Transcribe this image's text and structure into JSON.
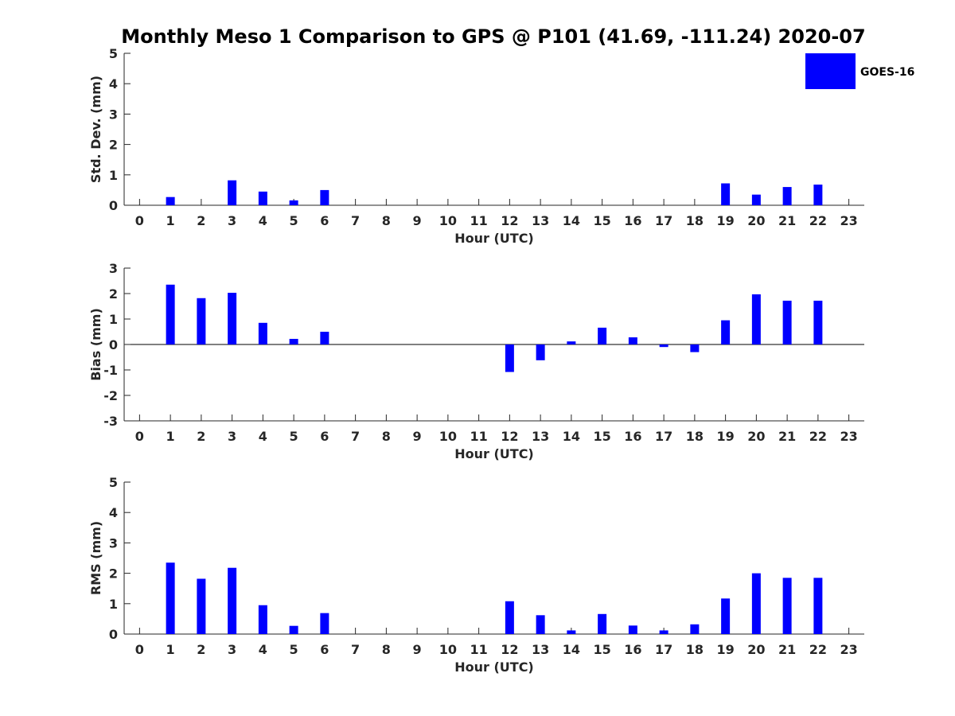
{
  "title": "Monthly Meso 1 Comparison to GPS @ P101 (41.69, -111.24) 2020-07",
  "legend": {
    "label": "GOES-16",
    "color": "#0000ff",
    "position": "top-right"
  },
  "colors": {
    "bar": "#0000ff",
    "axis": "#262626",
    "background": "#ffffff"
  },
  "chart_data": [
    {
      "type": "bar",
      "categories": [
        "0",
        "1",
        "2",
        "3",
        "4",
        "5",
        "6",
        "7",
        "8",
        "9",
        "10",
        "11",
        "12",
        "13",
        "14",
        "15",
        "16",
        "17",
        "18",
        "19",
        "20",
        "21",
        "22",
        "23"
      ],
      "values": [
        null,
        0.27,
        null,
        0.82,
        0.45,
        0.16,
        0.5,
        null,
        null,
        null,
        null,
        null,
        null,
        null,
        null,
        null,
        null,
        null,
        null,
        0.72,
        0.35,
        0.6,
        0.68,
        null
      ],
      "xlabel": "Hour (UTC)",
      "ylabel": "Std. Dev. (mm)",
      "ylim": [
        0,
        5
      ],
      "yticks": [
        "0",
        "1",
        "2",
        "3",
        "4",
        "5"
      ],
      "grid": false
    },
    {
      "type": "bar",
      "categories": [
        "0",
        "1",
        "2",
        "3",
        "4",
        "5",
        "6",
        "7",
        "8",
        "9",
        "10",
        "11",
        "12",
        "13",
        "14",
        "15",
        "16",
        "17",
        "18",
        "19",
        "20",
        "21",
        "22",
        "23"
      ],
      "values": [
        null,
        2.35,
        1.82,
        2.03,
        0.85,
        0.22,
        0.5,
        null,
        null,
        null,
        null,
        null,
        -1.08,
        -0.62,
        0.12,
        0.66,
        0.28,
        -0.1,
        -0.3,
        0.95,
        1.97,
        1.72,
        1.72,
        null
      ],
      "xlabel": "Hour (UTC)",
      "ylabel": "Bias (mm)",
      "ylim": [
        -3,
        3
      ],
      "yticks": [
        "-3",
        "-2",
        "-1",
        "0",
        "1",
        "2",
        "3"
      ],
      "grid": false
    },
    {
      "type": "bar",
      "categories": [
        "0",
        "1",
        "2",
        "3",
        "4",
        "5",
        "6",
        "7",
        "8",
        "9",
        "10",
        "11",
        "12",
        "13",
        "14",
        "15",
        "16",
        "17",
        "18",
        "19",
        "20",
        "21",
        "22",
        "23"
      ],
      "values": [
        null,
        2.35,
        1.82,
        2.18,
        0.95,
        0.27,
        0.69,
        null,
        null,
        null,
        null,
        null,
        1.08,
        0.62,
        0.12,
        0.66,
        0.28,
        0.12,
        0.32,
        1.17,
        2.0,
        1.85,
        1.85,
        null
      ],
      "xlabel": "Hour (UTC)",
      "ylabel": "RMS (mm)",
      "ylim": [
        0,
        5
      ],
      "yticks": [
        "0",
        "1",
        "2",
        "3",
        "4",
        "5"
      ],
      "grid": false
    }
  ]
}
